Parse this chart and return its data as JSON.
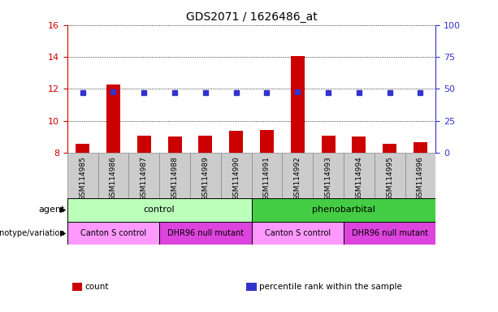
{
  "title": "GDS2071 / 1626486_at",
  "samples": [
    "GSM114985",
    "GSM114986",
    "GSM114987",
    "GSM114988",
    "GSM114989",
    "GSM114990",
    "GSM114991",
    "GSM114992",
    "GSM114993",
    "GSM114994",
    "GSM114995",
    "GSM114996"
  ],
  "count_values": [
    8.55,
    12.3,
    9.1,
    9.0,
    9.1,
    9.4,
    9.45,
    14.05,
    9.1,
    9.0,
    8.55,
    8.65
  ],
  "percentile_values": [
    47,
    47.5,
    47,
    47,
    47,
    47,
    47,
    47.5,
    47,
    47,
    47,
    47
  ],
  "ylim_left": [
    8,
    16
  ],
  "ylim_right": [
    0,
    100
  ],
  "yticks_left": [
    8,
    10,
    12,
    14,
    16
  ],
  "yticks_right": [
    0,
    25,
    50,
    75,
    100
  ],
  "bar_color": "#cc0000",
  "dot_color": "#3333cc",
  "agent_groups": [
    {
      "label": "control",
      "start": 0,
      "end": 6,
      "color": "#bbffbb"
    },
    {
      "label": "phenobarbital",
      "start": 6,
      "end": 12,
      "color": "#44cc44"
    }
  ],
  "genotype_groups": [
    {
      "label": "Canton S control",
      "start": 0,
      "end": 3,
      "color": "#ff99ff"
    },
    {
      "label": "DHR96 null mutant",
      "start": 3,
      "end": 6,
      "color": "#dd44dd"
    },
    {
      "label": "Canton S control",
      "start": 6,
      "end": 9,
      "color": "#ff99ff"
    },
    {
      "label": "DHR96 null mutant",
      "start": 9,
      "end": 12,
      "color": "#dd44dd"
    }
  ],
  "legend_items": [
    {
      "color": "#cc0000",
      "label": "count"
    },
    {
      "color": "#3333cc",
      "label": "percentile rank within the sample"
    }
  ],
  "agent_label": "agent",
  "genotype_label": "genotype/variation",
  "tick_color_left": "#cc0000",
  "tick_color_right": "#3333cc",
  "sample_box_color": "#cccccc",
  "sample_box_edge": "#888888"
}
